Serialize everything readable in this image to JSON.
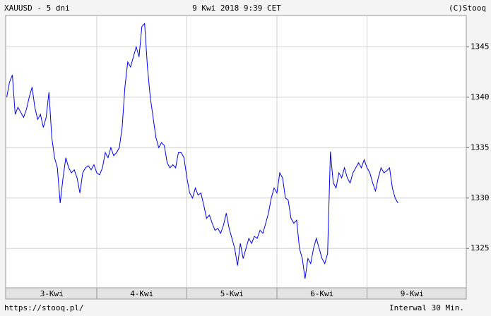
{
  "chart_data": {
    "type": "line",
    "title": "XAUUSD - 5 dni",
    "subtitle": "9 Kwi 2018 9:39 CET",
    "credit": "(C)Stooq",
    "source": "https://stooq.pl/",
    "interval": "Interwal 30 Min.",
    "color": "#0000ff",
    "grid": true,
    "ylim": [
      1321.1,
      1348.1
    ],
    "yticks": [
      1325,
      1330,
      1335,
      1340,
      1345
    ],
    "days": [
      {
        "label": "3-Kwi",
        "values": [
          1340,
          1341.5,
          1342.2,
          1338.3,
          1339,
          1338.5,
          1338,
          1338.8,
          1340,
          1341,
          1339,
          1337.8,
          1338.3,
          1337,
          1338,
          1340.5,
          1336,
          1334,
          1333,
          1329.5,
          1332,
          1334,
          1333,
          1332.5,
          1332.8,
          1332,
          1330.5,
          1332.5,
          1333,
          1333.2,
          1332.8,
          1333.3
        ]
      },
      {
        "label": "4-Kwi",
        "values": [
          1332.5,
          1332.3,
          1333,
          1334.5,
          1334,
          1335,
          1334.2,
          1334.5,
          1335,
          1337,
          1341,
          1343.5,
          1343,
          1344,
          1345,
          1344,
          1347,
          1347.3,
          1343,
          1340,
          1338,
          1336,
          1335,
          1335.5,
          1335.2,
          1333.5,
          1333,
          1333.3,
          1333,
          1334.5,
          1334.5,
          1334
        ]
      },
      {
        "label": "5-Kwi",
        "values": [
          1332,
          1330.5,
          1330,
          1331,
          1330.3,
          1330.5,
          1329.3,
          1328,
          1328.3,
          1327.5,
          1326.8,
          1327,
          1326.5,
          1327.3,
          1328.5,
          1327,
          1326,
          1325,
          1323.3,
          1325.5,
          1324,
          1325,
          1326,
          1325.5,
          1326.2,
          1326,
          1326.8,
          1326.5,
          1327.5,
          1328.5,
          1330,
          1331
        ]
      },
      {
        "label": "6-Kwi",
        "values": [
          1330.5,
          1332.5,
          1332,
          1330,
          1329.8,
          1328,
          1327.5,
          1327.8,
          1325,
          1324,
          1322,
          1324,
          1323.5,
          1325,
          1326,
          1325,
          1324,
          1323.5,
          1324.5,
          1334.6,
          1331.5,
          1331,
          1332.5,
          1332,
          1333,
          1332,
          1331.5,
          1332.5,
          1333,
          1333.5,
          1333,
          1333.8
        ]
      },
      {
        "label": "9-Kwi",
        "values": [
          1333,
          1332.5,
          1331.5,
          1330.7,
          1332,
          1333,
          1332.5,
          1332.7,
          1333,
          1331,
          1330,
          1329.5
        ]
      }
    ]
  }
}
